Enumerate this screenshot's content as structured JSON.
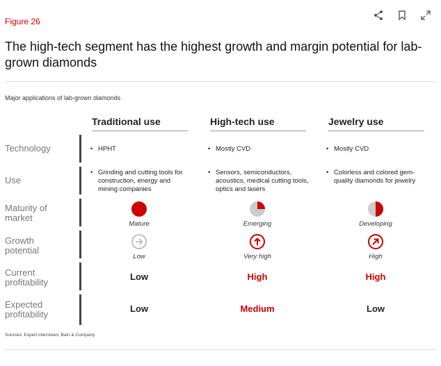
{
  "header": {
    "figure_label": "Figure 26"
  },
  "title": "The high-tech segment has the highest growth and margin potential for lab-grown diamonds",
  "subtitle": "Major applications of lab-grown diamonds",
  "columns": [
    "Traditional use",
    "High-tech use",
    "Jewelry use"
  ],
  "rows": {
    "technology": {
      "label": "Technology",
      "values": [
        "HPHT",
        "Mostly CVD",
        "Mostly CVD"
      ]
    },
    "use": {
      "label": "Use",
      "values": [
        "Grinding and cutting tools for construction, energy and mining companies",
        "Sensors, semiconductors, acoustics, medical cutting tools, optics and lasers",
        "Colorless and colored gem-quality diamonds for jewelry"
      ]
    },
    "maturity": {
      "label": "Maturity of market",
      "values": [
        "Mature",
        "Emerging",
        "Developing"
      ]
    },
    "growth": {
      "label": "Growth potential",
      "values": [
        "Low",
        "Very high",
        "High"
      ]
    },
    "current_profitability": {
      "label": "Current profitability",
      "values": [
        "Low",
        "High",
        "High"
      ]
    },
    "expected_profitability": {
      "label": "Expected profitability",
      "values": [
        "Low",
        "Medium",
        "Low"
      ]
    }
  },
  "bullet": "•",
  "sources": "Sources: Expert interviews; Bain & Company",
  "colors": {
    "accent": "#cc0000",
    "muted": "#777777",
    "pie_bg": "#cccccc"
  },
  "icons": [
    "share-icon",
    "bookmark-icon",
    "expand-icon"
  ]
}
